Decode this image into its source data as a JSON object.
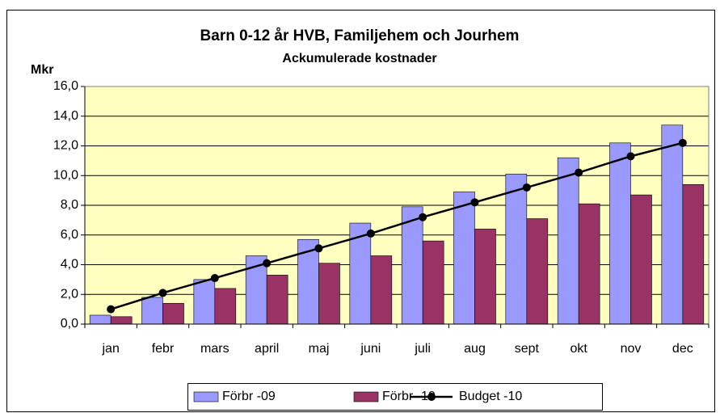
{
  "chart_data": {
    "type": "bar",
    "title": "Barn 0-12 år HVB, Familjehem och Jourhem",
    "subtitle": "Ackumulerade kostnader",
    "y_label": "Mkr",
    "categories": [
      "jan",
      "febr",
      "mars",
      "april",
      "maj",
      "juni",
      "juli",
      "aug",
      "sept",
      "okt",
      "nov",
      "dec"
    ],
    "series": [
      {
        "name": "Förbr -09",
        "type": "bar",
        "color": "#9999ff",
        "values": [
          0.6,
          1.8,
          3.0,
          4.6,
          5.7,
          6.8,
          7.9,
          8.9,
          10.1,
          11.2,
          12.2,
          13.4
        ]
      },
      {
        "name": "Förbr -10",
        "type": "bar",
        "color": "#993366",
        "values": [
          0.5,
          1.4,
          2.4,
          3.3,
          4.1,
          4.6,
          5.6,
          6.4,
          7.1,
          8.1,
          8.7,
          9.4
        ]
      },
      {
        "name": "Budget -10",
        "type": "line",
        "color": "#000000",
        "values": [
          1.0,
          2.1,
          3.1,
          4.1,
          5.1,
          6.1,
          7.2,
          8.2,
          9.2,
          10.2,
          11.3,
          12.2
        ]
      }
    ],
    "ylim": [
      0,
      16
    ],
    "yticks": [
      {
        "value": 0,
        "label": "0,0"
      },
      {
        "value": 2,
        "label": "2,0"
      },
      {
        "value": 4,
        "label": "4,0"
      },
      {
        "value": 6,
        "label": "6,0"
      },
      {
        "value": 8,
        "label": "8,0"
      },
      {
        "value": 10,
        "label": "10,0"
      },
      {
        "value": 12,
        "label": "12,0"
      },
      {
        "value": 14,
        "label": "14,0"
      },
      {
        "value": 16,
        "label": "16,0"
      }
    ],
    "grid": true,
    "legend": "bottom"
  }
}
